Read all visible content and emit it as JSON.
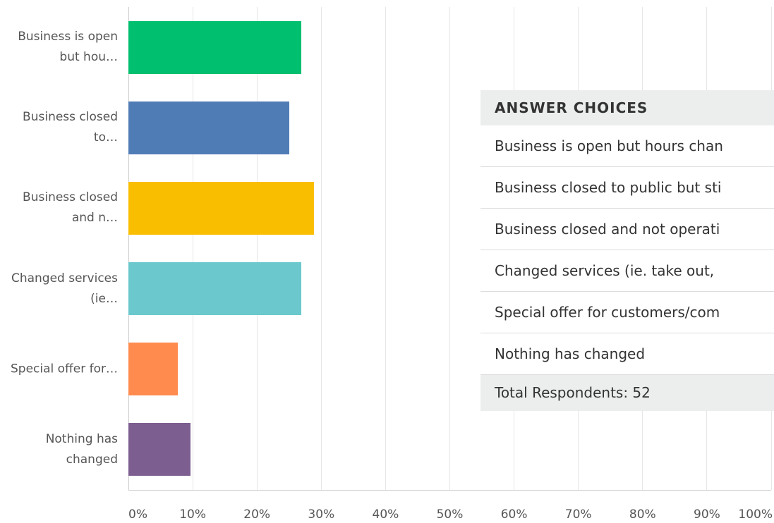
{
  "chart_data": {
    "type": "bar",
    "orientation": "horizontal",
    "categories": [
      "Business is open but hou…",
      "Business closed to…",
      "Business closed and n…",
      "Changed services (ie…",
      "Special offer for…",
      "Nothing has changed"
    ],
    "values": [
      26.92,
      25,
      28.85,
      26.92,
      7.69,
      9.62
    ],
    "colors": [
      "#00bf6f",
      "#507cb6",
      "#f9be00",
      "#6bc8cd",
      "#ff8b4f",
      "#7d5e90"
    ],
    "xlim": [
      0,
      100
    ],
    "xticks": [
      {
        "value": 0,
        "label": "0%"
      },
      {
        "value": 10,
        "label": "10%"
      },
      {
        "value": 20,
        "label": "20%"
      },
      {
        "value": 30,
        "label": "30%"
      },
      {
        "value": 40,
        "label": "40%"
      },
      {
        "value": 50,
        "label": "50%"
      },
      {
        "value": 60,
        "label": "60%"
      },
      {
        "value": 70,
        "label": "70%"
      },
      {
        "value": 80,
        "label": "80%"
      },
      {
        "value": 90,
        "label": "90%"
      },
      {
        "value": 100,
        "label": "100%"
      }
    ],
    "grid": true
  },
  "table": {
    "header": "ANSWER CHOICES",
    "rows": [
      "Business is open but hours chan",
      "Business closed to public but sti",
      "Business closed and not operati",
      "Changed services (ie. take out, ",
      "Special offer for customers/com",
      "Nothing has changed"
    ],
    "footer": "Total Respondents: 52"
  }
}
